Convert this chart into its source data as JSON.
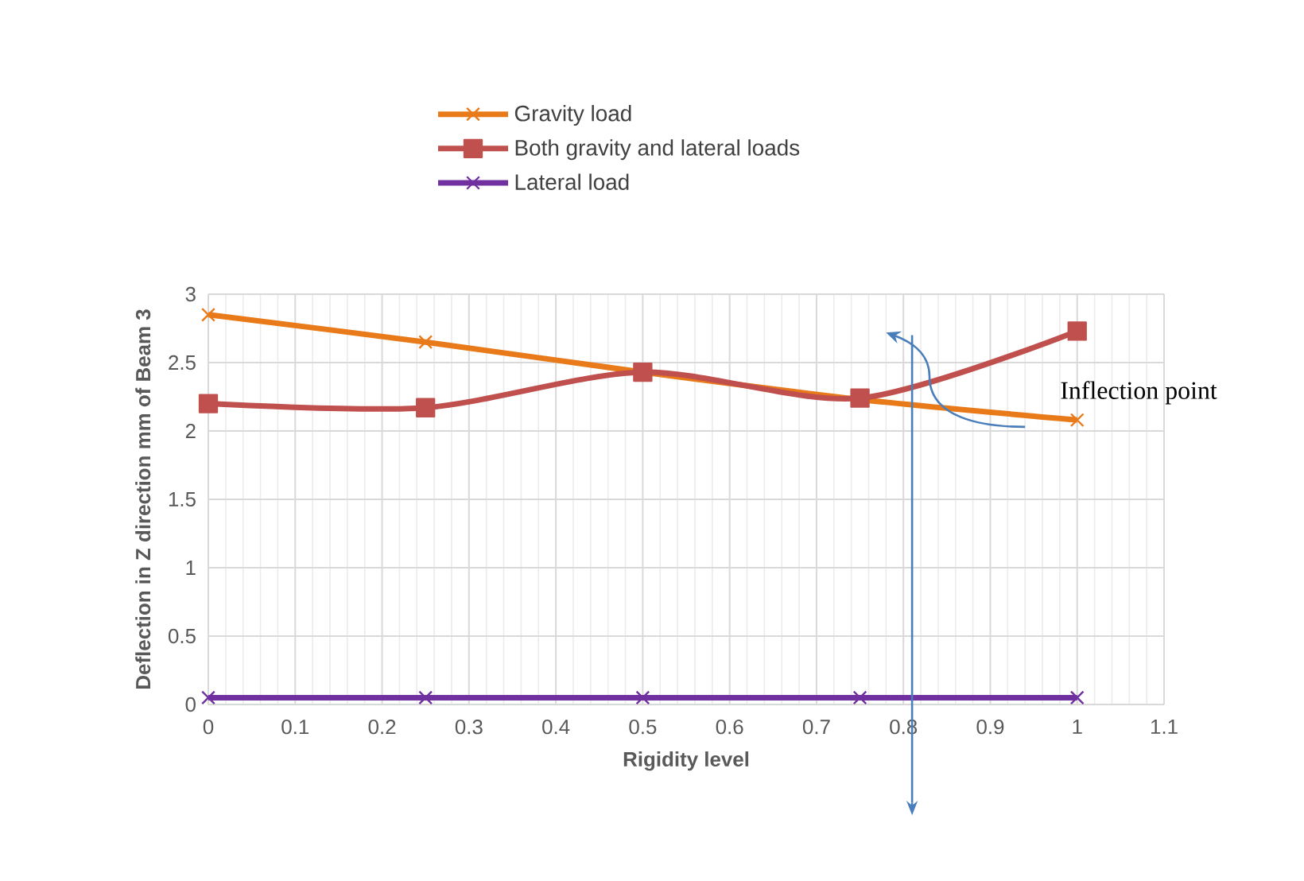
{
  "chart_data": {
    "type": "line",
    "xlabel": "Rigidity  level",
    "ylabel": "Deflection in Z direction mm of Beam 3",
    "x": [
      0,
      0.25,
      0.5,
      0.75,
      1
    ],
    "series": [
      {
        "name": "Gravity load",
        "color": "#e97a1a",
        "marker": "cross",
        "values": [
          2.85,
          2.65,
          2.43,
          2.23,
          2.08
        ]
      },
      {
        "name": "Both gravity and lateral loads",
        "color": "#c0504d",
        "marker": "square",
        "values": [
          2.2,
          2.17,
          2.43,
          2.24,
          2.73
        ]
      },
      {
        "name": "Lateral load",
        "color": "#7030a0",
        "marker": "cross",
        "values": [
          0.05,
          0.05,
          0.05,
          0.05,
          0.05
        ]
      }
    ],
    "xlim": [
      0,
      1.1
    ],
    "xticks": [
      0,
      0.1,
      0.2,
      0.3,
      0.4,
      0.5,
      0.6,
      0.7,
      0.8,
      0.9,
      1,
      1.1
    ],
    "ylim": [
      0,
      3
    ],
    "yticks": [
      0,
      0.5,
      1,
      1.5,
      2,
      2.5,
      3
    ],
    "grid": true,
    "legend": "top",
    "ref_lines": [
      {
        "axis": "x",
        "value": 0.81,
        "color": "#4a7ebb"
      }
    ],
    "annotations": [
      {
        "text": "Inflection point",
        "x": 0.98,
        "y": 2.1
      }
    ]
  }
}
